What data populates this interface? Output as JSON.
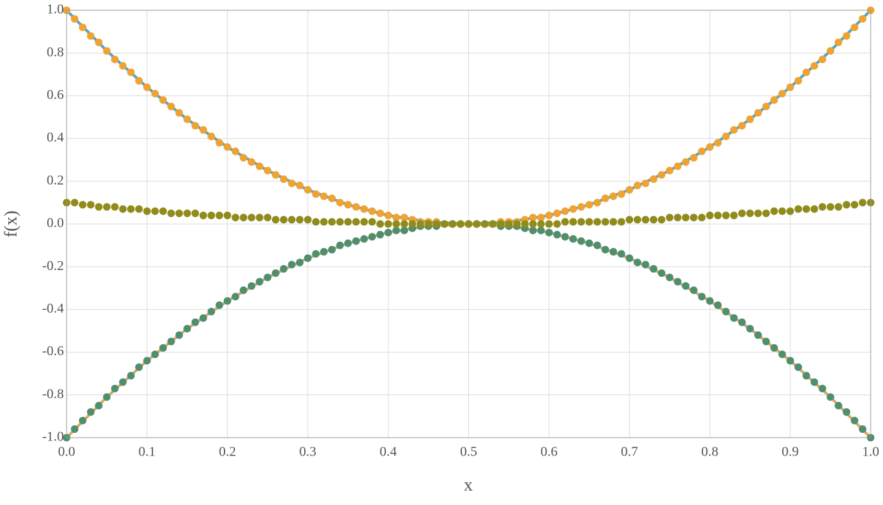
{
  "chart_data": {
    "type": "line",
    "xlabel": "x",
    "ylabel": "f(x)",
    "xlim": [
      0,
      1
    ],
    "ylim": [
      -1,
      1
    ],
    "xticks": [
      {
        "value": 0,
        "label": "0.0"
      },
      0.1,
      0.2,
      0.3,
      0.4,
      0.5,
      0.6,
      0.7,
      0.8,
      0.9,
      {
        "value": 1,
        "label": "1.0"
      }
    ],
    "yticks": [
      {
        "value": -1,
        "label": "-1.0"
      },
      -0.8,
      -0.6,
      -0.4,
      -0.2,
      {
        "value": 0,
        "label": "0.0"
      },
      0.2,
      0.4,
      0.6,
      0.8,
      {
        "value": 1,
        "label": "1.0"
      }
    ],
    "grid": true,
    "series": [
      {
        "type": "line",
        "color": "#4ea8cb",
        "x": [
          0,
          0.05,
          0.1,
          0.15,
          0.2,
          0.25,
          0.3,
          0.35,
          0.4,
          0.45,
          0.5,
          0.55,
          0.6,
          0.65,
          0.7,
          0.75,
          0.8,
          0.85,
          0.9,
          0.95,
          1
        ],
        "values": [
          1,
          0.81,
          0.64,
          0.49,
          0.36,
          0.25,
          0.16,
          0.09,
          0.04,
          0.01,
          0,
          0.01,
          0.04,
          0.09,
          0.16,
          0.25,
          0.36,
          0.49,
          0.64,
          0.81,
          1
        ]
      },
      {
        "type": "scatter",
        "color": "#f0a232",
        "x": [
          0,
          0.01,
          0.02,
          0.03,
          0.04,
          0.05,
          0.06,
          0.07,
          0.08,
          0.09,
          0.1,
          0.11,
          0.12,
          0.13,
          0.14,
          0.15,
          0.16,
          0.17,
          0.18,
          0.19,
          0.2,
          0.21,
          0.22,
          0.23,
          0.24,
          0.25,
          0.26,
          0.27,
          0.28,
          0.29,
          0.3,
          0.31,
          0.32,
          0.33,
          0.34,
          0.35,
          0.36,
          0.37,
          0.38,
          0.39,
          0.4,
          0.41,
          0.42,
          0.43,
          0.44,
          0.45,
          0.46,
          0.47,
          0.48,
          0.49,
          0.5,
          0.51,
          0.52,
          0.53,
          0.54,
          0.55,
          0.56,
          0.57,
          0.58,
          0.59,
          0.6,
          0.61,
          0.62,
          0.63,
          0.64,
          0.65,
          0.66,
          0.67,
          0.68,
          0.69,
          0.7,
          0.71,
          0.72,
          0.73,
          0.74,
          0.75,
          0.76,
          0.77,
          0.78,
          0.79,
          0.8,
          0.81,
          0.82,
          0.83,
          0.84,
          0.85,
          0.86,
          0.87,
          0.88,
          0.89,
          0.9,
          0.91,
          0.92,
          0.93,
          0.94,
          0.95,
          0.96,
          0.97,
          0.98,
          0.99,
          1
        ],
        "values": [
          1,
          0.96,
          0.92,
          0.88,
          0.85,
          0.81,
          0.77,
          0.74,
          0.71,
          0.67,
          0.64,
          0.61,
          0.58,
          0.55,
          0.52,
          0.49,
          0.46,
          0.44,
          0.41,
          0.38,
          0.36,
          0.34,
          0.31,
          0.29,
          0.27,
          0.25,
          0.23,
          0.21,
          0.19,
          0.18,
          0.16,
          0.14,
          0.13,
          0.12,
          0.1,
          0.09,
          0.08,
          0.07,
          0.06,
          0.05,
          0.04,
          0.03,
          0.03,
          0.02,
          0.01,
          0.01,
          0.01,
          0,
          0,
          0,
          0,
          0,
          0,
          0,
          0.01,
          0.01,
          0.01,
          0.02,
          0.03,
          0.03,
          0.04,
          0.05,
          0.06,
          0.07,
          0.08,
          0.09,
          0.1,
          0.12,
          0.13,
          0.14,
          0.16,
          0.18,
          0.19,
          0.21,
          0.23,
          0.25,
          0.27,
          0.29,
          0.31,
          0.34,
          0.36,
          0.38,
          0.41,
          0.44,
          0.46,
          0.49,
          0.52,
          0.55,
          0.58,
          0.61,
          0.64,
          0.67,
          0.71,
          0.74,
          0.77,
          0.81,
          0.85,
          0.88,
          0.92,
          0.96,
          1
        ]
      },
      {
        "type": "line",
        "color": "#e0a766",
        "x": [
          0,
          0.05,
          0.1,
          0.15,
          0.2,
          0.25,
          0.3,
          0.35,
          0.4,
          0.45,
          0.5,
          0.55,
          0.6,
          0.65,
          0.7,
          0.75,
          0.8,
          0.85,
          0.9,
          0.95,
          1
        ],
        "values": [
          -1,
          -0.81,
          -0.64,
          -0.49,
          -0.36,
          -0.25,
          -0.16,
          -0.09,
          -0.04,
          -0.01,
          0,
          -0.01,
          -0.04,
          -0.09,
          -0.16,
          -0.25,
          -0.36,
          -0.49,
          -0.64,
          -0.81,
          -1
        ]
      },
      {
        "type": "scatter",
        "color": "#4e8f6f",
        "x": [
          0,
          0.01,
          0.02,
          0.03,
          0.04,
          0.05,
          0.06,
          0.07,
          0.08,
          0.09,
          0.1,
          0.11,
          0.12,
          0.13,
          0.14,
          0.15,
          0.16,
          0.17,
          0.18,
          0.19,
          0.2,
          0.21,
          0.22,
          0.23,
          0.24,
          0.25,
          0.26,
          0.27,
          0.28,
          0.29,
          0.3,
          0.31,
          0.32,
          0.33,
          0.34,
          0.35,
          0.36,
          0.37,
          0.38,
          0.39,
          0.4,
          0.41,
          0.42,
          0.43,
          0.44,
          0.45,
          0.46,
          0.47,
          0.48,
          0.49,
          0.5,
          0.51,
          0.52,
          0.53,
          0.54,
          0.55,
          0.56,
          0.57,
          0.58,
          0.59,
          0.6,
          0.61,
          0.62,
          0.63,
          0.64,
          0.65,
          0.66,
          0.67,
          0.68,
          0.69,
          0.7,
          0.71,
          0.72,
          0.73,
          0.74,
          0.75,
          0.76,
          0.77,
          0.78,
          0.79,
          0.8,
          0.81,
          0.82,
          0.83,
          0.84,
          0.85,
          0.86,
          0.87,
          0.88,
          0.89,
          0.9,
          0.91,
          0.92,
          0.93,
          0.94,
          0.95,
          0.96,
          0.97,
          0.98,
          0.99,
          1
        ],
        "values": [
          -1,
          -0.96,
          -0.92,
          -0.88,
          -0.85,
          -0.81,
          -0.77,
          -0.74,
          -0.71,
          -0.67,
          -0.64,
          -0.61,
          -0.58,
          -0.55,
          -0.52,
          -0.49,
          -0.46,
          -0.44,
          -0.41,
          -0.38,
          -0.36,
          -0.34,
          -0.31,
          -0.29,
          -0.27,
          -0.25,
          -0.23,
          -0.21,
          -0.19,
          -0.18,
          -0.16,
          -0.14,
          -0.13,
          -0.12,
          -0.1,
          -0.09,
          -0.08,
          -0.07,
          -0.06,
          -0.05,
          -0.04,
          -0.03,
          -0.03,
          -0.02,
          -0.01,
          -0.01,
          -0.01,
          0,
          0,
          0,
          0,
          0,
          0,
          0,
          -0.01,
          -0.01,
          -0.01,
          -0.02,
          -0.03,
          -0.03,
          -0.04,
          -0.05,
          -0.06,
          -0.07,
          -0.08,
          -0.09,
          -0.1,
          -0.12,
          -0.13,
          -0.14,
          -0.16,
          -0.18,
          -0.19,
          -0.21,
          -0.23,
          -0.25,
          -0.27,
          -0.29,
          -0.31,
          -0.34,
          -0.36,
          -0.38,
          -0.41,
          -0.44,
          -0.46,
          -0.49,
          -0.52,
          -0.55,
          -0.58,
          -0.61,
          -0.64,
          -0.67,
          -0.71,
          -0.74,
          -0.77,
          -0.81,
          -0.85,
          -0.88,
          -0.92,
          -0.96,
          -1
        ]
      },
      {
        "type": "scatter",
        "color": "#908c1c",
        "x": [
          0,
          0.01,
          0.02,
          0.03,
          0.04,
          0.05,
          0.06,
          0.07,
          0.08,
          0.09,
          0.1,
          0.11,
          0.12,
          0.13,
          0.14,
          0.15,
          0.16,
          0.17,
          0.18,
          0.19,
          0.2,
          0.21,
          0.22,
          0.23,
          0.24,
          0.25,
          0.26,
          0.27,
          0.28,
          0.29,
          0.3,
          0.31,
          0.32,
          0.33,
          0.34,
          0.35,
          0.36,
          0.37,
          0.38,
          0.39,
          0.4,
          0.41,
          0.42,
          0.43,
          0.44,
          0.45,
          0.46,
          0.47,
          0.48,
          0.49,
          0.5,
          0.51,
          0.52,
          0.53,
          0.54,
          0.55,
          0.56,
          0.57,
          0.58,
          0.59,
          0.6,
          0.61,
          0.62,
          0.63,
          0.64,
          0.65,
          0.66,
          0.67,
          0.68,
          0.69,
          0.7,
          0.71,
          0.72,
          0.73,
          0.74,
          0.75,
          0.76,
          0.77,
          0.78,
          0.79,
          0.8,
          0.81,
          0.82,
          0.83,
          0.84,
          0.85,
          0.86,
          0.87,
          0.88,
          0.89,
          0.9,
          0.91,
          0.92,
          0.93,
          0.94,
          0.95,
          0.96,
          0.97,
          0.98,
          0.99,
          1
        ],
        "values": [
          0.1,
          0.1,
          0.09,
          0.09,
          0.08,
          0.08,
          0.08,
          0.07,
          0.07,
          0.07,
          0.06,
          0.06,
          0.06,
          0.05,
          0.05,
          0.05,
          0.05,
          0.04,
          0.04,
          0.04,
          0.04,
          0.03,
          0.03,
          0.03,
          0.03,
          0.03,
          0.02,
          0.02,
          0.02,
          0.02,
          0.02,
          0.01,
          0.01,
          0.01,
          0.01,
          0.01,
          0.01,
          0.01,
          0.01,
          0,
          0,
          0,
          0,
          0,
          0,
          0,
          0,
          0,
          0,
          0,
          0,
          0,
          0,
          0,
          0,
          0,
          0,
          0,
          0,
          0,
          0,
          0,
          0.01,
          0.01,
          0.01,
          0.01,
          0.01,
          0.01,
          0.01,
          0.01,
          0.02,
          0.02,
          0.02,
          0.02,
          0.02,
          0.03,
          0.03,
          0.03,
          0.03,
          0.03,
          0.04,
          0.04,
          0.04,
          0.04,
          0.05,
          0.05,
          0.05,
          0.05,
          0.06,
          0.06,
          0.06,
          0.07,
          0.07,
          0.07,
          0.08,
          0.08,
          0.08,
          0.09,
          0.09,
          0.1,
          0.1
        ]
      }
    ]
  }
}
